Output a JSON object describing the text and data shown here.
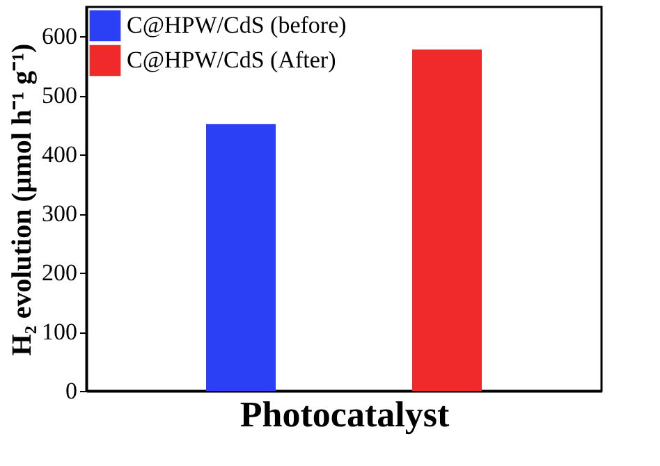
{
  "chart_data": {
    "type": "bar",
    "xlabel": "Photocatalyst",
    "ylabel": "H₂ evolution (μmol h⁻¹ g⁻¹)",
    "categories": [
      null,
      null
    ],
    "series": [
      {
        "name": "C@HPW/CdS (before)",
        "color": "#2b3ff5",
        "values": [
          452,
          null
        ]
      },
      {
        "name": "C@HPW/CdS (After)",
        "color": "#f02a2a",
        "values": [
          null,
          578
        ]
      }
    ],
    "ylim": [
      0,
      650
    ],
    "yticks": [
      0,
      100,
      200,
      300,
      400,
      500,
      600
    ],
    "grid": false,
    "legend": "top left"
  }
}
